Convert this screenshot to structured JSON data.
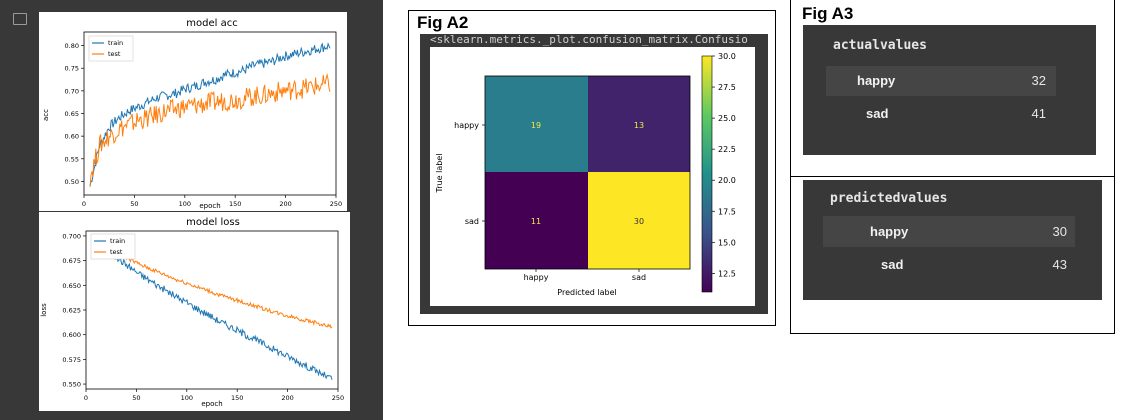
{
  "panel_a1": {
    "gutter_icon": "output-icon",
    "acc": {
      "title": "model acc",
      "xlabel": "epoch",
      "ylabel": "acc",
      "legend": [
        "train",
        "test"
      ],
      "xticks": [
        "0",
        "50",
        "100",
        "150",
        "200",
        "250"
      ],
      "yticks": [
        "0.50",
        "0.55",
        "0.60",
        "0.65",
        "0.70",
        "0.75",
        "0.80"
      ]
    },
    "loss": {
      "title": "model loss",
      "xlabel": "epoch",
      "ylabel": "loss",
      "legend": [
        "train",
        "test"
      ],
      "xticks": [
        "0",
        "50",
        "100",
        "150",
        "200",
        "250"
      ],
      "yticks": [
        "0.550",
        "0.575",
        "0.600",
        "0.625",
        "0.650",
        "0.675",
        "0.700"
      ]
    }
  },
  "fig_a2": {
    "title": "Fig A2",
    "output_text": "<sklearn.metrics._plot.confusion_matrix.Confusio",
    "ylabel": "True label",
    "xlabel": "Predicted label",
    "x_ticks": [
      "happy",
      "sad"
    ],
    "y_ticks": [
      "happy",
      "sad"
    ],
    "cells": [
      [
        "19",
        "13"
      ],
      [
        "11",
        "30"
      ]
    ],
    "colorbar_ticks": [
      "30.0",
      "27.5",
      "25.0",
      "22.5",
      "20.0",
      "17.5",
      "15.0",
      "12.5"
    ]
  },
  "fig_a3": {
    "title": "Fig A3",
    "actual": {
      "header": "actualvalues",
      "rows": [
        {
          "label": "happy",
          "value": "32"
        },
        {
          "label": "sad",
          "value": "41"
        }
      ]
    },
    "predicted": {
      "header": "predictedvalues",
      "rows": [
        {
          "label": "happy",
          "value": "30"
        },
        {
          "label": "sad",
          "value": "43"
        }
      ]
    }
  },
  "chart_data": [
    {
      "type": "line",
      "title": "model acc",
      "xlabel": "epoch",
      "ylabel": "acc",
      "xlim": [
        0,
        250
      ],
      "ylim": [
        0.47,
        0.83
      ],
      "legend_position": "top-left",
      "x": [
        0,
        10,
        20,
        30,
        40,
        50,
        60,
        70,
        80,
        90,
        100,
        110,
        120,
        130,
        140,
        150,
        160,
        170,
        180,
        190,
        200,
        210,
        220,
        230,
        240,
        250
      ],
      "series": [
        {
          "name": "train",
          "color": "#1f77b4",
          "values": [
            0.49,
            0.58,
            0.62,
            0.64,
            0.655,
            0.665,
            0.675,
            0.685,
            0.69,
            0.695,
            0.705,
            0.71,
            0.72,
            0.725,
            0.735,
            0.74,
            0.745,
            0.755,
            0.76,
            0.765,
            0.775,
            0.78,
            0.785,
            0.79,
            0.795,
            0.8
          ]
        },
        {
          "name": "test",
          "color": "#ff7f0e",
          "values": [
            0.51,
            0.58,
            0.6,
            0.615,
            0.625,
            0.635,
            0.64,
            0.648,
            0.655,
            0.66,
            0.665,
            0.668,
            0.672,
            0.675,
            0.678,
            0.68,
            0.684,
            0.688,
            0.69,
            0.695,
            0.7,
            0.702,
            0.705,
            0.708,
            0.712,
            0.715
          ]
        }
      ]
    },
    {
      "type": "line",
      "title": "model loss",
      "xlabel": "epoch",
      "ylabel": "loss",
      "xlim": [
        0,
        250
      ],
      "ylim": [
        0.545,
        0.705
      ],
      "legend_position": "top-left",
      "x": [
        0,
        10,
        20,
        30,
        40,
        50,
        60,
        70,
        80,
        90,
        100,
        110,
        120,
        130,
        140,
        150,
        160,
        170,
        180,
        190,
        200,
        210,
        220,
        230,
        240,
        250
      ],
      "series": [
        {
          "name": "train",
          "color": "#1f77b4",
          "values": [
            0.699,
            0.69,
            0.682,
            0.675,
            0.668,
            0.661,
            0.655,
            0.649,
            0.643,
            0.637,
            0.632,
            0.626,
            0.621,
            0.615,
            0.61,
            0.605,
            0.6,
            0.595,
            0.59,
            0.585,
            0.58,
            0.575,
            0.57,
            0.565,
            0.56,
            0.555
          ]
        },
        {
          "name": "test",
          "color": "#ff7f0e",
          "values": [
            0.699,
            0.693,
            0.687,
            0.681,
            0.676,
            0.671,
            0.667,
            0.663,
            0.659,
            0.655,
            0.652,
            0.648,
            0.645,
            0.641,
            0.638,
            0.635,
            0.632,
            0.629,
            0.626,
            0.623,
            0.62,
            0.618,
            0.615,
            0.613,
            0.61,
            0.608
          ]
        }
      ]
    },
    {
      "type": "heatmap",
      "xlabel": "Predicted label",
      "ylabel": "True label",
      "x_categories": [
        "happy",
        "sad"
      ],
      "y_categories": [
        "happy",
        "sad"
      ],
      "values": [
        [
          19,
          13
        ],
        [
          11,
          30
        ]
      ],
      "colorbar_range": [
        11,
        30
      ],
      "colormap": "viridis"
    }
  ]
}
